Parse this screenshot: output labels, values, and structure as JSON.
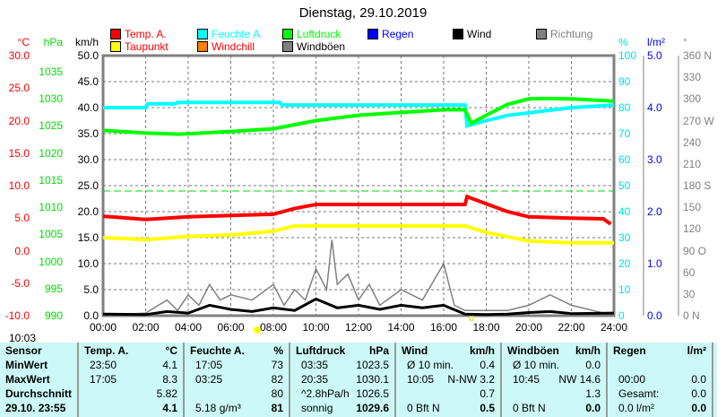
{
  "title": "Dienstag, 29.10.2019",
  "legend": [
    {
      "label": "Temp. A.",
      "color": "#ff0000"
    },
    {
      "label": "Taupunkt",
      "color": "#ffff00",
      "text": "#ff0000"
    },
    {
      "label": "Feuchte A.",
      "color": "#00ffff"
    },
    {
      "label": "Windchill",
      "color": "#ff8000",
      "text": "#ff0000"
    },
    {
      "label": "Luftdruck",
      "color": "#00ff00"
    },
    {
      "label": "Windböen",
      "color": "#808080",
      "text": "#000000"
    },
    {
      "label": "Regen",
      "color": "#0000ff"
    },
    {
      "label": "Wind",
      "color": "#000000"
    },
    {
      "label": "Richtung",
      "color": "#808080"
    }
  ],
  "axes": {
    "temp_unit": "°C",
    "temp_ticks": [
      "30.0",
      "25.0",
      "20.0",
      "15.0",
      "10.0",
      "5.0",
      "0.0",
      "-5.0",
      "-10.0"
    ],
    "hpa_unit": "hPa",
    "hpa_ticks": [
      "1035",
      "1030",
      "1025",
      "1020",
      "1015",
      "1010",
      "1005",
      "1000",
      "995",
      "990"
    ],
    "kmh_unit": "km/h",
    "kmh_ticks": [
      "50.0",
      "45.0",
      "40.0",
      "35.0",
      "30.0",
      "25.0",
      "20.0",
      "15.0",
      "10.0",
      "5.0",
      "0.0"
    ],
    "pct_unit": "%",
    "pct_ticks": [
      "100",
      "90",
      "80",
      "70",
      "60",
      "50",
      "40",
      "30",
      "20",
      "10",
      "0"
    ],
    "rain_unit": "l/m²",
    "rain_ticks": [
      "5.0",
      "4.0",
      "3.0",
      "2.0",
      "1.0",
      "0.0"
    ],
    "dir_unit": "°",
    "dir_ticks": [
      "360 N",
      "330",
      "300",
      "270 W",
      "240",
      "210",
      "180 S",
      "150",
      "120",
      "90 O",
      "60",
      "30",
      "0 N"
    ],
    "x_ticks": [
      "00:00",
      "02:00",
      "04:00",
      "06:00",
      "08:00",
      "10:00",
      "12:00",
      "14:00",
      "16:00",
      "18:00",
      "20:00",
      "22:00",
      "24:00"
    ]
  },
  "time_label": "10:03",
  "chart_data": {
    "type": "line",
    "title": "Dienstag, 29.10.2019",
    "xlabel": "",
    "xlim": [
      0,
      24
    ],
    "series": [
      {
        "name": "Temp. A.",
        "axis": "°C",
        "ylim": [
          -10,
          30
        ],
        "color": "#ff0000",
        "points": [
          [
            0,
            5.3
          ],
          [
            2,
            4.8
          ],
          [
            4,
            5.2
          ],
          [
            6,
            5.4
          ],
          [
            8,
            5.6
          ],
          [
            9,
            6.5
          ],
          [
            10,
            7.1
          ],
          [
            17,
            7.1
          ],
          [
            17.1,
            8.3
          ],
          [
            18,
            7.2
          ],
          [
            19,
            6.0
          ],
          [
            20,
            5.2
          ],
          [
            22,
            5.0
          ],
          [
            23.5,
            4.9
          ],
          [
            23.85,
            4.1
          ]
        ]
      },
      {
        "name": "Taupunkt",
        "axis": "°C",
        "ylim": [
          -10,
          30
        ],
        "color": "#ffff00",
        "points": [
          [
            0,
            2.0
          ],
          [
            2,
            1.7
          ],
          [
            4,
            2.2
          ],
          [
            6,
            2.4
          ],
          [
            8,
            3.0
          ],
          [
            9,
            3.8
          ],
          [
            17,
            3.8
          ],
          [
            18,
            2.8
          ],
          [
            20,
            1.5
          ],
          [
            22,
            1.2
          ],
          [
            24,
            1.2
          ]
        ]
      },
      {
        "name": "Feuchte A.",
        "axis": "%",
        "ylim": [
          0,
          100
        ],
        "color": "#00ffff",
        "points": [
          [
            0,
            80
          ],
          [
            2,
            80
          ],
          [
            2.1,
            81.5
          ],
          [
            3.4,
            81.5
          ],
          [
            3.5,
            82
          ],
          [
            8.3,
            82
          ],
          [
            8.4,
            81
          ],
          [
            17,
            81
          ],
          [
            17.1,
            73
          ],
          [
            18,
            75
          ],
          [
            19,
            77
          ],
          [
            20,
            78
          ],
          [
            21,
            79
          ],
          [
            22,
            80
          ],
          [
            24,
            81
          ]
        ]
      },
      {
        "name": "Luftdruck",
        "axis": "hPa",
        "ylim": [
          990,
          1038
        ],
        "color": "#00ff00",
        "points": [
          [
            0,
            1024.2
          ],
          [
            2,
            1023.7
          ],
          [
            3.6,
            1023.5
          ],
          [
            6,
            1024
          ],
          [
            8,
            1024.5
          ],
          [
            10,
            1026
          ],
          [
            12,
            1027
          ],
          [
            14,
            1027.5
          ],
          [
            16,
            1028
          ],
          [
            17,
            1028
          ],
          [
            17.3,
            1025.5
          ],
          [
            18,
            1027
          ],
          [
            19,
            1029
          ],
          [
            20,
            1030
          ],
          [
            20.6,
            1030.1
          ],
          [
            22,
            1030
          ],
          [
            24,
            1029.6
          ]
        ]
      },
      {
        "name": "Windböen",
        "axis": "km/h",
        "ylim": [
          0,
          50
        ],
        "color": "#808080",
        "points": [
          [
            0,
            0
          ],
          [
            2,
            0.5
          ],
          [
            3,
            3
          ],
          [
            3.5,
            1
          ],
          [
            4,
            4
          ],
          [
            4.5,
            2
          ],
          [
            5,
            6
          ],
          [
            5.5,
            3
          ],
          [
            6,
            4
          ],
          [
            7,
            3
          ],
          [
            8,
            6
          ],
          [
            8.5,
            2
          ],
          [
            9,
            5
          ],
          [
            9.5,
            3
          ],
          [
            10,
            9
          ],
          [
            10.5,
            5
          ],
          [
            10.75,
            14.6
          ],
          [
            11,
            6
          ],
          [
            11.5,
            8
          ],
          [
            12,
            3
          ],
          [
            12.5,
            6
          ],
          [
            13,
            2
          ],
          [
            14,
            5
          ],
          [
            15,
            3
          ],
          [
            16,
            10
          ],
          [
            16.5,
            2
          ],
          [
            17,
            1
          ],
          [
            18,
            1
          ],
          [
            19,
            1
          ],
          [
            20,
            2
          ],
          [
            21,
            4
          ],
          [
            22,
            2
          ],
          [
            23,
            1
          ],
          [
            24,
            0
          ]
        ]
      },
      {
        "name": "Wind",
        "axis": "km/h",
        "ylim": [
          0,
          50
        ],
        "color": "#000000",
        "points": [
          [
            0,
            0.3
          ],
          [
            2,
            0.2
          ],
          [
            3,
            0.8
          ],
          [
            4,
            0.5
          ],
          [
            5,
            2
          ],
          [
            6,
            1.2
          ],
          [
            7,
            0.8
          ],
          [
            8,
            1.5
          ],
          [
            9,
            1.0
          ],
          [
            10,
            3.2
          ],
          [
            11,
            1.5
          ],
          [
            12,
            2.0
          ],
          [
            13,
            1.2
          ],
          [
            14,
            2.0
          ],
          [
            15,
            1.5
          ],
          [
            16,
            2.0
          ],
          [
            17,
            0.3
          ],
          [
            18,
            0.2
          ],
          [
            19,
            0.3
          ],
          [
            20,
            0.6
          ],
          [
            21,
            0.8
          ],
          [
            22,
            0.4
          ],
          [
            24,
            0.5
          ]
        ]
      }
    ],
    "reference_line": {
      "axis": "hPa",
      "value": 1013
    }
  },
  "table": {
    "columns": [
      {
        "head": "Sensor",
        "rows": [
          "MinWert",
          "MaxWert",
          "Durchschnitt",
          "29.10. 23:55"
        ]
      },
      {
        "head": "Temp. A.",
        "unit": "°C",
        "left": [
          "23:50",
          "17:05",
          "",
          ""
        ],
        "right": [
          "4.1",
          "8.3",
          "5.82",
          "4.1"
        ]
      },
      {
        "head": "Feuchte A.",
        "unit": "%",
        "left": [
          "17:05",
          "03:25",
          "",
          "5.18 g/m³"
        ],
        "right": [
          "73",
          "82",
          "80",
          "81"
        ]
      },
      {
        "head": "Luftdruck",
        "unit": "hPa",
        "left": [
          "03:35",
          "20:35",
          "^2.8hPa/h",
          "sonnig"
        ],
        "right": [
          "1023.5",
          "1030.1",
          "1026.5",
          "1029.6"
        ]
      },
      {
        "head": "Wind",
        "unit": "km/h",
        "left": [
          "Ø 10 min.",
          "10:05",
          "",
          "0 Bft N"
        ],
        "right": [
          "0.4",
          "N-NW 3.2",
          "0.7",
          "0.5"
        ]
      },
      {
        "head": "Windböen",
        "unit": "km/h",
        "left": [
          "Ø 10 min.",
          "10:45",
          "",
          "0 Bft N"
        ],
        "right": [
          "0.0",
          "NW 14.6",
          "1.3",
          "0.0"
        ]
      },
      {
        "head": "Regen",
        "unit": "l/m²",
        "left": [
          "",
          "00:00",
          "Gesamt:",
          "0.0 l/m²"
        ],
        "right": [
          "",
          "0.0",
          "0.0",
          "0.0"
        ]
      }
    ]
  }
}
